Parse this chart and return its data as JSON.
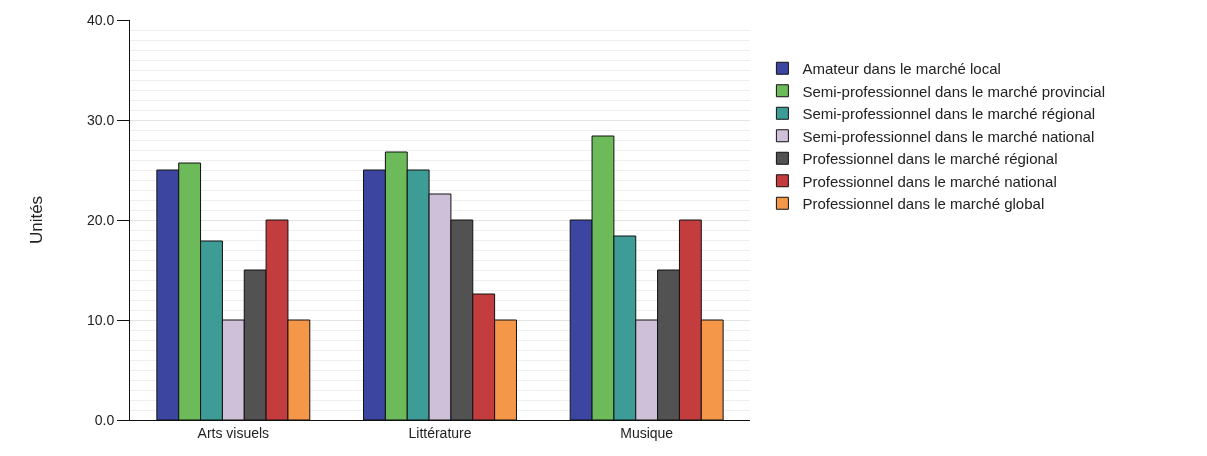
{
  "chart_data": {
    "type": "bar",
    "ylabel": "Unités",
    "categories": [
      "Arts visuels",
      "Littérature",
      "Musique"
    ],
    "series": [
      {
        "name": "Amateur dans le marché local",
        "color": "#3c46a0",
        "values": [
          25,
          25,
          20
        ]
      },
      {
        "name": "Semi-professionnel dans le marché provincial",
        "color": "#6cba5a",
        "values": [
          25.7,
          26.8,
          28.4
        ]
      },
      {
        "name": "Semi-professionnel dans le marché régional",
        "color": "#3d9c96",
        "values": [
          17.9,
          25,
          18.4
        ]
      },
      {
        "name": "Semi-professionnel dans le marché national",
        "color": "#cfc0da",
        "values": [
          10,
          22.6,
          10
        ]
      },
      {
        "name": "Professionnel dans le marché régional",
        "color": "#525252",
        "values": [
          15,
          20,
          15
        ]
      },
      {
        "name": "Professionnel dans le marché national",
        "color": "#c33c3e",
        "values": [
          20,
          12.6,
          20
        ]
      },
      {
        "name": "Professionnel dans le marché global",
        "color": "#f59748",
        "values": [
          10,
          10,
          10
        ]
      }
    ],
    "ylim": [
      0,
      40
    ],
    "yticks": [
      {
        "value": 0,
        "label": "0.0"
      },
      {
        "value": 10,
        "label": "10.0"
      },
      {
        "value": 20,
        "label": "20.0"
      },
      {
        "value": 30,
        "label": "30.0"
      },
      {
        "value": 40,
        "label": "40.0"
      }
    ],
    "grid": "y",
    "legend": "right"
  }
}
